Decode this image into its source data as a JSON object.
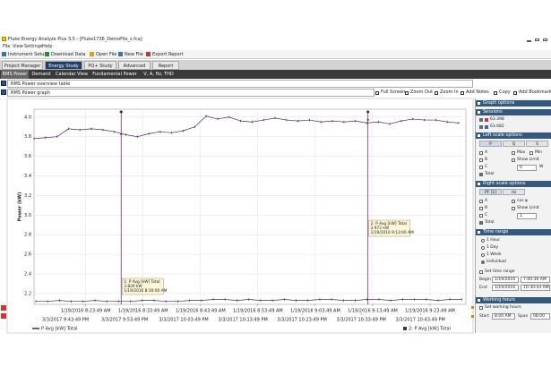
{
  "window": {
    "title": "Fluke Energy Analyze Plus 3.5 - [Fluke1736_DemoFile_s.fca]"
  },
  "menu": [
    "File",
    "View",
    "Settings",
    "Help"
  ],
  "toolbar": [
    "Instrument Setup",
    "Download Data",
    "Open File",
    "New File",
    "Export Report"
  ],
  "tabs": {
    "items": [
      "Project Manager",
      "Energy Study",
      "PQ+ Study",
      "Advanced",
      "Report"
    ],
    "active": 1
  },
  "subtabs": {
    "items": [
      "RMS Power",
      "Demand",
      "Calendar View",
      "Fundamental Power",
      "V, A, Hz, THD"
    ],
    "active": 0
  },
  "overview_title": "RMS Power overview table",
  "graph_toolbar": [
    "Full Screen",
    "Zoom Out",
    "Zoom In",
    "Add Notes",
    "Copy",
    "Add Bookmark"
  ],
  "chart_data": {
    "type": "line",
    "title": "RMS Power graph",
    "y_label": "Power (kW)",
    "ylim": [
      2.09,
      4.08
    ],
    "yticks": [
      2.2,
      2.4,
      2.6,
      2.8,
      {
        "value": 3,
        "label": "3.0"
      },
      3.2,
      3.4,
      3.6,
      3.8,
      {
        "value": 4,
        "label": "4.0"
      }
    ],
    "xlim": [
      "1/19/2016 8:14:49 AM",
      "1/19/2016 9:30:04 AM"
    ],
    "xticks": [
      "1/19/2016 8:23:49 AM",
      "1/19/2016 8:33:49 AM",
      "1/19/2016 8:43:49 AM",
      "1/19/2016 8:53:49 AM",
      "1/19/2016 9:03:49 AM",
      "1/19/2016 9:13:49 AM",
      "1/19/2016 9:23:49 AM"
    ],
    "x2lim": [
      "3/3/2017 9:38:31 PM",
      "3/3/2017 10:51:31 PM"
    ],
    "x2ticks": [
      "3/3/2017 9:43:49 PM",
      "3/3/2017 9:53:49 PM",
      "3/3/2017 10:03:49 PM",
      "3/3/2017 10:13:49 PM",
      "3/3/2017 10:23:49 PM",
      "3/3/2017 10:33:49 PM",
      "3/3/2017 10:43:49 PM"
    ],
    "grid": true,
    "series": [
      {
        "name": "P Avg [kW] Total",
        "color": "#4e2a55",
        "x_axis": "x",
        "x": [
          "1/19/2016 8:14:49 AM",
          "1/19/2016 8:16:49 AM",
          "1/19/2016 8:18:49 AM",
          "1/19/2016 8:20:49 AM",
          "1/19/2016 8:22:49 AM",
          "1/19/2016 8:24:49 AM",
          "1/19/2016 8:26:49 AM",
          "1/19/2016 8:28:49 AM",
          "1/19/2016 8:30:49 AM",
          "1/19/2016 8:32:49 AM",
          "1/19/2016 8:34:49 AM",
          "1/19/2016 8:36:49 AM",
          "1/19/2016 8:38:49 AM",
          "1/19/2016 8:40:49 AM",
          "1/19/2016 8:42:49 AM",
          "1/19/2016 8:44:49 AM",
          "1/19/2016 8:46:49 AM",
          "1/19/2016 8:48:49 AM",
          "1/19/2016 8:50:49 AM",
          "1/19/2016 8:52:49 AM",
          "1/19/2016 8:54:49 AM",
          "1/19/2016 8:56:49 AM",
          "1/19/2016 8:58:49 AM",
          "1/19/2016 9:00:49 AM",
          "1/19/2016 9:02:49 AM",
          "1/19/2016 9:04:49 AM",
          "1/19/2016 9:06:49 AM",
          "1/19/2016 9:08:49 AM",
          "1/19/2016 9:10:49 AM",
          "1/19/2016 9:12:49 AM",
          "1/19/2016 9:14:49 AM",
          "1/19/2016 9:16:49 AM",
          "1/19/2016 9:18:49 AM",
          "1/19/2016 9:20:49 AM",
          "1/19/2016 9:22:49 AM",
          "1/19/2016 9:24:49 AM",
          "1/19/2016 9:26:49 AM",
          "1/19/2016 9:28:49 AM"
        ],
        "values": [
          3.78,
          3.79,
          3.8,
          3.88,
          3.87,
          3.88,
          3.87,
          3.85,
          3.82,
          3.8,
          3.83,
          3.85,
          3.84,
          3.86,
          3.9,
          4.01,
          3.98,
          4.0,
          3.96,
          3.95,
          3.97,
          3.99,
          3.97,
          3.96,
          3.97,
          3.95,
          3.96,
          3.95,
          3.96,
          3.94,
          3.95,
          3.93,
          3.96,
          3.98,
          3.97,
          3.97,
          3.95,
          3.94
        ]
      },
      {
        "name": "2: P Avg [kW] Total",
        "color": "#3b3456",
        "x_axis": "x2",
        "x": [
          "3/3/2017 9:38:49 PM",
          "3/3/2017 9:40:49 PM",
          "3/3/2017 9:42:49 PM",
          "3/3/2017 9:44:49 PM",
          "3/3/2017 9:46:49 PM",
          "3/3/2017 9:48:49 PM",
          "3/3/2017 9:50:49 PM",
          "3/3/2017 9:52:49 PM",
          "3/3/2017 9:54:49 PM",
          "3/3/2017 9:56:49 PM",
          "3/3/2017 9:58:49 PM",
          "3/3/2017 10:00:49 PM",
          "3/3/2017 10:02:49 PM",
          "3/3/2017 10:04:49 PM",
          "3/3/2017 10:06:49 PM",
          "3/3/2017 10:08:49 PM",
          "3/3/2017 10:10:49 PM",
          "3/3/2017 10:12:49 PM",
          "3/3/2017 10:14:49 PM",
          "3/3/2017 10:16:49 PM",
          "3/3/2017 10:18:49 PM",
          "3/3/2017 10:20:49 PM",
          "3/3/2017 10:22:49 PM",
          "3/3/2017 10:24:49 PM",
          "3/3/2017 10:26:49 PM",
          "3/3/2017 10:28:49 PM",
          "3/3/2017 10:30:49 PM",
          "3/3/2017 10:32:49 PM",
          "3/3/2017 10:34:49 PM",
          "3/3/2017 10:36:49 PM",
          "3/3/2017 10:38:49 PM",
          "3/3/2017 10:40:49 PM",
          "3/3/2017 10:42:49 PM",
          "3/3/2017 10:44:49 PM",
          "3/3/2017 10:46:49 PM",
          "3/3/2017 10:48:49 PM",
          "3/3/2017 10:50:49 PM"
        ],
        "values": [
          2.12,
          2.12,
          2.13,
          2.12,
          2.12,
          2.13,
          2.12,
          2.12,
          2.12,
          2.13,
          2.13,
          2.12,
          2.12,
          2.13,
          2.13,
          2.14,
          2.14,
          2.13,
          2.14,
          2.13,
          2.13,
          2.14,
          2.13,
          2.13,
          2.14,
          2.14,
          2.13,
          2.13,
          2.14,
          2.14,
          2.13,
          2.14,
          2.14,
          2.14,
          2.13,
          2.14,
          2.14
        ]
      }
    ],
    "cursors": [
      {
        "label": "1: P Avg [kW] Total",
        "value": 3.826,
        "value_label": "3.826 kW",
        "time": "1/19/2016 8:30:00 AM",
        "color": "#7b2a86"
      },
      {
        "label": "2: P Avg [kW] Total",
        "value": 3.972,
        "value_label": "3.972 kW",
        "time": "1/19/2016 9:13:00 AM",
        "color": "#7b2a86"
      }
    ]
  },
  "side_panel": {
    "title": "Graph options",
    "sessions": {
      "title": "Sessions",
      "items": [
        "63.398",
        "63.682"
      ]
    },
    "left_scale": {
      "title": "Left scale options",
      "tabs": [
        "P",
        "Q",
        "S"
      ],
      "checks": [
        "A",
        "B",
        "C",
        "Total"
      ],
      "options": [
        "Max",
        "Min",
        "Show Limit"
      ],
      "limit": "0",
      "unit": "W"
    },
    "right_scale": {
      "title": "Right scale options",
      "tabs": [
        "PF [1]",
        "Hz"
      ],
      "checks": [
        "A",
        "B",
        "C",
        "Total"
      ],
      "options": [
        "cos φ",
        "Show Limit"
      ],
      "limit": "1"
    },
    "time_range": {
      "title": "Time range",
      "radios": [
        "1 Hour",
        "1 Day",
        "1 Week",
        "Individual"
      ],
      "set": "Set time range",
      "begin_label": "Begin",
      "begin_date": "1/19/2016",
      "begin_time": "7:00:36 AM",
      "end_label": "End",
      "end_date": "1/19/2016",
      "end_time": "10:30:43 AM"
    },
    "working_hours": {
      "title": "Working hours",
      "set": "Set working hours",
      "start_label": "Start",
      "start": "8:00 AM",
      "span_label": "Span",
      "span": "08:00"
    }
  }
}
